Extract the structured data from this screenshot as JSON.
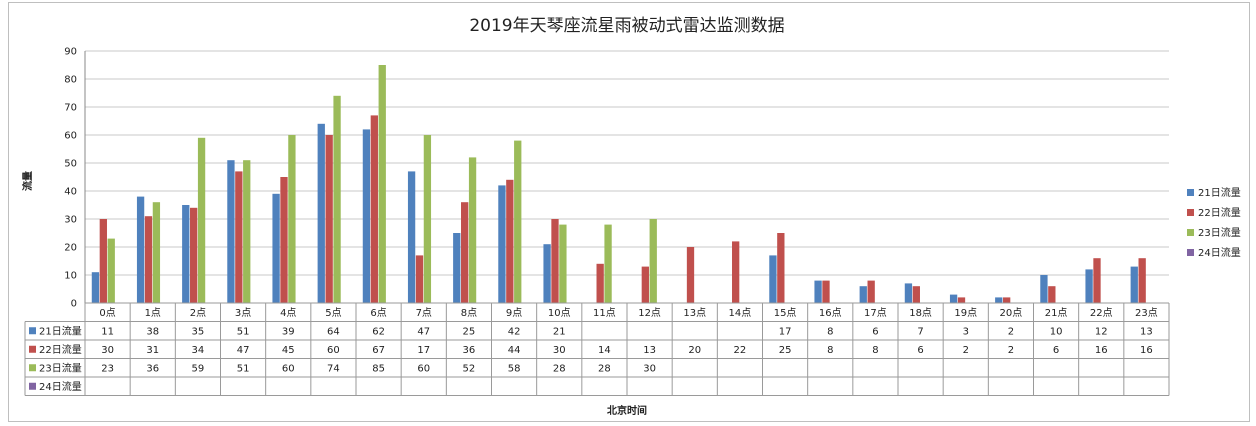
{
  "chart_data": {
    "type": "bar",
    "title": "2019年天琴座流星雨被动式雷达监测数据",
    "xlabel": "北京时间",
    "ylabel": "流量",
    "ylim": [
      0,
      90
    ],
    "yticks": [
      0,
      10,
      20,
      30,
      40,
      50,
      60,
      70,
      80,
      90
    ],
    "grid": true,
    "legend": "right",
    "categories": [
      "0点",
      "1点",
      "2点",
      "3点",
      "4点",
      "5点",
      "6点",
      "7点",
      "8点",
      "9点",
      "10点",
      "11点",
      "12点",
      "13点",
      "14点",
      "15点",
      "16点",
      "17点",
      "18点",
      "19点",
      "20点",
      "21点",
      "22点",
      "23点"
    ],
    "series": [
      {
        "name": "21日流量",
        "color": "#4f81bd",
        "values": [
          11,
          38,
          35,
          51,
          39,
          64,
          62,
          47,
          25,
          42,
          21,
          null,
          null,
          null,
          null,
          17,
          8,
          6,
          7,
          3,
          2,
          10,
          12,
          13
        ]
      },
      {
        "name": "22日流量",
        "color": "#c0504d",
        "values": [
          30,
          31,
          34,
          47,
          45,
          60,
          67,
          17,
          36,
          44,
          30,
          14,
          13,
          20,
          22,
          25,
          8,
          8,
          6,
          2,
          2,
          6,
          16,
          16
        ]
      },
      {
        "name": "23日流量",
        "color": "#9bbb59",
        "values": [
          23,
          36,
          59,
          51,
          60,
          74,
          85,
          60,
          52,
          58,
          28,
          28,
          30,
          null,
          null,
          null,
          null,
          null,
          null,
          null,
          null,
          null,
          null,
          null
        ]
      },
      {
        "name": "24日流量",
        "color": "#8064a2",
        "values": [
          null,
          null,
          null,
          null,
          null,
          null,
          null,
          null,
          null,
          null,
          null,
          null,
          null,
          null,
          null,
          null,
          null,
          null,
          null,
          null,
          null,
          null,
          null,
          null
        ]
      }
    ]
  }
}
